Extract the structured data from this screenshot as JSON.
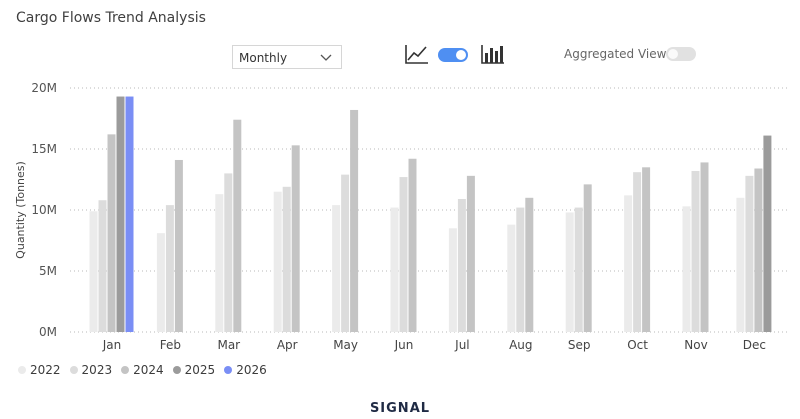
{
  "header": {
    "title": "Cargo Flows Trend Analysis"
  },
  "controls": {
    "period_dropdown": {
      "selected": "Monthly"
    },
    "line_icon": "line-chart-icon",
    "bar_icon": "bar-chart-icon",
    "chart_toggle": {
      "on": true
    },
    "aggregated": {
      "label": "Aggregated View",
      "on": false
    }
  },
  "colors": {
    "2022": "#ebebeb",
    "2023": "#dcdcdc",
    "2024": "#c4c4c4",
    "2025": "#9b9b9b",
    "2026": "#7a8ef5",
    "accent": "#4f8ff2"
  },
  "footer": {
    "brand": "SIGNAL"
  },
  "chart_data": {
    "type": "bar",
    "title": "Cargo Flows Trend Analysis",
    "xlabel": "",
    "ylabel": "Quantity (Tonnes)",
    "ylim": [
      0,
      20000000
    ],
    "yticks": [
      "0M",
      "5M",
      "10M",
      "15M",
      "20M"
    ],
    "grid": true,
    "legend_position": "bottom-left",
    "categories": [
      "Jan",
      "Feb",
      "Mar",
      "Apr",
      "May",
      "Jun",
      "Jul",
      "Aug",
      "Sep",
      "Oct",
      "Nov",
      "Dec"
    ],
    "series": [
      {
        "name": "2022",
        "values": [
          9900000,
          8100000,
          11300000,
          11500000,
          10400000,
          10200000,
          8500000,
          8800000,
          9800000,
          11200000,
          10300000,
          11000000
        ]
      },
      {
        "name": "2023",
        "values": [
          10800000,
          10400000,
          13000000,
          11900000,
          12900000,
          12700000,
          10900000,
          10200000,
          10200000,
          13100000,
          13200000,
          12800000
        ]
      },
      {
        "name": "2024",
        "values": [
          16200000,
          14100000,
          17400000,
          15300000,
          18200000,
          14200000,
          12800000,
          11000000,
          12100000,
          13500000,
          13900000,
          13400000
        ]
      },
      {
        "name": "2025",
        "values": [
          19300000,
          null,
          null,
          null,
          null,
          null,
          null,
          null,
          null,
          null,
          null,
          16100000
        ]
      },
      {
        "name": "2026",
        "values": [
          19300000,
          null,
          null,
          null,
          null,
          null,
          null,
          null,
          null,
          null,
          null,
          null
        ]
      }
    ]
  }
}
